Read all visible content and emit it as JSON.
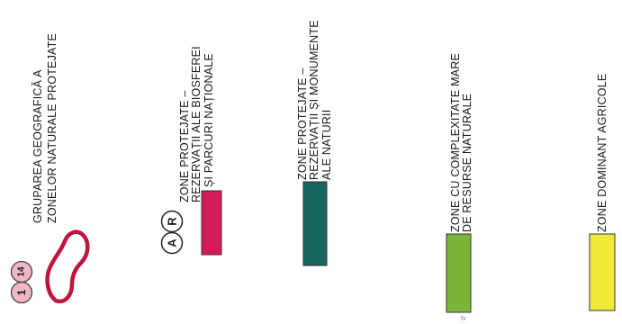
{
  "legend": {
    "groups": {
      "title_line1": "GRUPAREA GEOGRAFICĂ A",
      "title_line2": "ZONELOR NATURALE PROTEJATE",
      "badge_small": "1",
      "badge_large": "14",
      "outline_color": "#c0143c"
    },
    "biosphere": {
      "line1": "ZONE PROTEJATE –",
      "line2": "REZERVAȚII ALE BIOSFEREI",
      "line3": "ȘI PARCURI NAȚIONALE",
      "badge_a": "A",
      "badge_r": "R",
      "color": "#d41a5c"
    },
    "monuments": {
      "line1": "ZONE PROTEJATE –",
      "line2": "REZERVAȚII ȘI MONUMENTE",
      "line3": "ALE NATURII",
      "color": "#14665e"
    },
    "resources": {
      "line1": "ZONE CU COMPLEXITATE MARE",
      "line2": "DE RESURSE NATURALE",
      "color": "#7ab53a"
    },
    "agricultural": {
      "line1": "ZONE DOMINANT AGRICOLE",
      "color": "#f2ea3a"
    },
    "footnote": "fv"
  }
}
